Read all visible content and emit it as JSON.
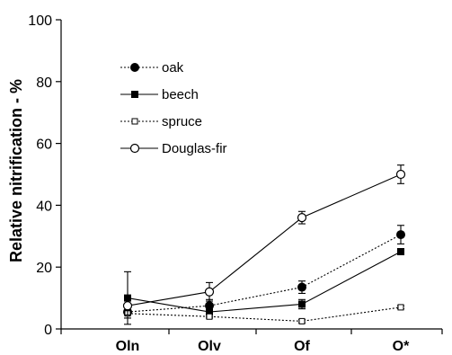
{
  "chart_data": {
    "type": "line",
    "title": "",
    "xlabel": "",
    "ylabel": "Relative nitrification - %",
    "categories": [
      "Oln",
      "Olv",
      "Of",
      "O*"
    ],
    "ylim": [
      0,
      100
    ],
    "yticks": [
      "0",
      "20",
      "40",
      "60",
      "80",
      "100"
    ],
    "grid": false,
    "legend_position": "top-left",
    "series": [
      {
        "name": "oak",
        "values": [
          5.5,
          7.5,
          13.5,
          30.5
        ],
        "errors": [
          2,
          2,
          2,
          3
        ],
        "line_style": "dotted",
        "marker": "filled-circle"
      },
      {
        "name": "beech",
        "values": [
          10,
          5.5,
          8,
          25
        ],
        "errors": [
          8.5,
          1.5,
          1.5,
          1
        ],
        "line_style": "solid",
        "marker": "filled-square"
      },
      {
        "name": "spruce",
        "values": [
          5,
          4,
          2.5,
          7
        ],
        "errors": [
          0.5,
          0.5,
          0.5,
          0.5
        ],
        "line_style": "dotted",
        "marker": "open-square"
      },
      {
        "name": "Douglas-fir",
        "values": [
          7.5,
          12,
          36,
          50
        ],
        "errors": [
          3,
          3,
          2,
          3
        ],
        "line_style": "solid",
        "marker": "open-circle"
      }
    ]
  }
}
